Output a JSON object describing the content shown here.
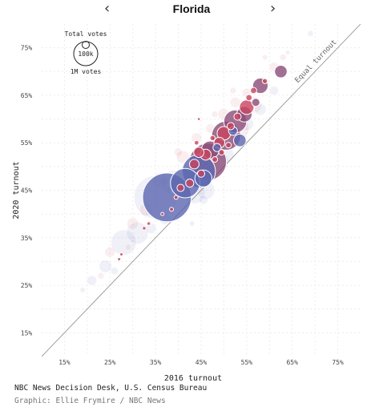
{
  "header": {
    "title": "Florida",
    "prev_icon": "chevron-left-icon",
    "next_icon": "chevron-right-icon",
    "prev_glyph": "‹",
    "next_glyph": "›"
  },
  "chart_data": {
    "type": "scatter",
    "xlabel": "2016 turnout",
    "ylabel": "2020 turnout",
    "xlim": [
      10,
      80
    ],
    "ylim": [
      10,
      80
    ],
    "x_ticks": [
      "15%",
      "25%",
      "35%",
      "45%",
      "55%",
      "65%",
      "75%"
    ],
    "y_ticks": [
      "15%",
      "25%",
      "35%",
      "45%",
      "55%",
      "65%",
      "75%"
    ],
    "reference_line_label": "Equal turnout",
    "size_legend": {
      "title": "Total votes",
      "small_label": "100k",
      "large_label": "1M votes"
    },
    "grid": true,
    "colors": {
      "dem": "#5b67b0",
      "rep": "#c8445e",
      "mixed": "#8b4c78",
      "reference": "#888888"
    },
    "points": [
      {
        "x": 37.5,
        "y": 43.5,
        "votes": 900000,
        "party": "dem"
      },
      {
        "x": 41.5,
        "y": 46.5,
        "votes": 330000,
        "party": "dem"
      },
      {
        "x": 44.5,
        "y": 49,
        "votes": 420000,
        "party": "dem"
      },
      {
        "x": 46.5,
        "y": 51,
        "votes": 520000,
        "party": "mixed"
      },
      {
        "x": 50.5,
        "y": 56.5,
        "votes": 320000,
        "party": "mixed"
      },
      {
        "x": 52.5,
        "y": 59.5,
        "votes": 200000,
        "party": "mixed"
      },
      {
        "x": 53.5,
        "y": 55.5,
        "votes": 60000,
        "party": "dem"
      },
      {
        "x": 47,
        "y": 53.5,
        "votes": 120000,
        "party": "mixed"
      },
      {
        "x": 45.5,
        "y": 47.5,
        "votes": 110000,
        "party": "dem"
      },
      {
        "x": 54.5,
        "y": 61,
        "votes": 90000,
        "party": "mixed"
      },
      {
        "x": 55,
        "y": 62.5,
        "votes": 80000,
        "party": "rep"
      },
      {
        "x": 58,
        "y": 67,
        "votes": 90000,
        "party": "mixed"
      },
      {
        "x": 62.5,
        "y": 70,
        "votes": 60000,
        "party": "mixed"
      },
      {
        "x": 50,
        "y": 57,
        "votes": 70000,
        "party": "rep"
      },
      {
        "x": 49,
        "y": 55,
        "votes": 45000,
        "party": "rep"
      },
      {
        "x": 46,
        "y": 52.5,
        "votes": 45000,
        "party": "rep"
      },
      {
        "x": 43.5,
        "y": 50.5,
        "votes": 35000,
        "party": "rep"
      },
      {
        "x": 42.5,
        "y": 46.5,
        "votes": 25000,
        "party": "rep"
      },
      {
        "x": 40.5,
        "y": 45.5,
        "votes": 20000,
        "party": "rep"
      },
      {
        "x": 45,
        "y": 48.5,
        "votes": 20000,
        "party": "rep"
      },
      {
        "x": 51.5,
        "y": 58.5,
        "votes": 20000,
        "party": "rep"
      },
      {
        "x": 53,
        "y": 60.5,
        "votes": 20000,
        "party": "rep"
      },
      {
        "x": 55.5,
        "y": 64.5,
        "votes": 15000,
        "party": "rep"
      },
      {
        "x": 56.5,
        "y": 66,
        "votes": 15000,
        "party": "rep"
      },
      {
        "x": 49.5,
        "y": 53,
        "votes": 12000,
        "party": "rep"
      },
      {
        "x": 48,
        "y": 51.5,
        "votes": 12000,
        "party": "rep"
      },
      {
        "x": 51,
        "y": 54.5,
        "votes": 12000,
        "party": "rep"
      },
      {
        "x": 47.5,
        "y": 56,
        "votes": 10000,
        "party": "rep"
      },
      {
        "x": 44,
        "y": 55,
        "votes": 8000,
        "party": "rep"
      },
      {
        "x": 39.5,
        "y": 43.5,
        "votes": 6000,
        "party": "rep"
      },
      {
        "x": 38.5,
        "y": 41,
        "votes": 6000,
        "party": "rep"
      },
      {
        "x": 33.5,
        "y": 38,
        "votes": 5000,
        "party": "rep"
      },
      {
        "x": 32.5,
        "y": 37,
        "votes": 5000,
        "party": "rep"
      },
      {
        "x": 27.5,
        "y": 31.5,
        "votes": 4000,
        "party": "rep"
      },
      {
        "x": 27,
        "y": 30.5,
        "votes": 4000,
        "party": "rep"
      },
      {
        "x": 36.5,
        "y": 40,
        "votes": 4000,
        "party": "rep"
      },
      {
        "x": 44.5,
        "y": 60,
        "votes": 2000,
        "party": "rep"
      },
      {
        "x": 52,
        "y": 57.5,
        "votes": 30000,
        "party": "dem"
      },
      {
        "x": 48.5,
        "y": 54,
        "votes": 25000,
        "party": "dem"
      },
      {
        "x": 57,
        "y": 63.5,
        "votes": 25000,
        "party": "mixed"
      },
      {
        "x": 59,
        "y": 68,
        "votes": 10000,
        "party": "rep"
      },
      {
        "x": 44.5,
        "y": 53,
        "votes": 40000,
        "party": "rep"
      }
    ],
    "faint_points": [
      {
        "x": 35,
        "y": 43.5,
        "votes": 700000,
        "party": "dem"
      },
      {
        "x": 28,
        "y": 34,
        "votes": 240000,
        "party": "dem"
      },
      {
        "x": 31,
        "y": 36,
        "votes": 180000,
        "party": "dem"
      },
      {
        "x": 24,
        "y": 29,
        "votes": 60000,
        "party": "dem"
      },
      {
        "x": 21,
        "y": 26,
        "votes": 35000,
        "party": "dem"
      },
      {
        "x": 39,
        "y": 46.5,
        "votes": 250000,
        "party": "dem"
      },
      {
        "x": 43.5,
        "y": 44.5,
        "votes": 180000,
        "party": "dem"
      },
      {
        "x": 46,
        "y": 45,
        "votes": 120000,
        "party": "dem"
      },
      {
        "x": 48.5,
        "y": 51,
        "votes": 200000,
        "party": "dem"
      },
      {
        "x": 53,
        "y": 58,
        "votes": 200000,
        "party": "rep"
      },
      {
        "x": 56.5,
        "y": 63,
        "votes": 100000,
        "party": "rep"
      },
      {
        "x": 58.5,
        "y": 67.5,
        "votes": 60000,
        "party": "rep"
      },
      {
        "x": 61,
        "y": 71,
        "votes": 30000,
        "party": "rep"
      },
      {
        "x": 63,
        "y": 73,
        "votes": 15000,
        "party": "rep"
      },
      {
        "x": 69,
        "y": 78,
        "votes": 12000,
        "party": "dem"
      },
      {
        "x": 25,
        "y": 32,
        "votes": 40000,
        "party": "rep"
      },
      {
        "x": 30,
        "y": 38,
        "votes": 50000,
        "party": "rep"
      },
      {
        "x": 33,
        "y": 41,
        "votes": 70000,
        "party": "rep"
      },
      {
        "x": 36,
        "y": 47,
        "votes": 90000,
        "party": "rep"
      },
      {
        "x": 41,
        "y": 52,
        "votes": 60000,
        "party": "rep"
      },
      {
        "x": 44,
        "y": 56,
        "votes": 40000,
        "party": "rep"
      },
      {
        "x": 47,
        "y": 58,
        "votes": 30000,
        "party": "rep"
      },
      {
        "x": 50,
        "y": 61,
        "votes": 50000,
        "party": "rep"
      },
      {
        "x": 52.5,
        "y": 63.5,
        "votes": 40000,
        "party": "rep"
      },
      {
        "x": 55,
        "y": 65.5,
        "votes": 30000,
        "party": "rep"
      },
      {
        "x": 42,
        "y": 49,
        "votes": 80000,
        "party": "rep"
      },
      {
        "x": 45,
        "y": 51.5,
        "votes": 90000,
        "party": "rep"
      },
      {
        "x": 50.5,
        "y": 52.5,
        "votes": 90000,
        "party": "dem"
      },
      {
        "x": 37,
        "y": 39,
        "votes": 50000,
        "party": "dem"
      },
      {
        "x": 34,
        "y": 37,
        "votes": 40000,
        "party": "dem"
      },
      {
        "x": 55,
        "y": 59,
        "votes": 70000,
        "party": "dem"
      },
      {
        "x": 58,
        "y": 62,
        "votes": 50000,
        "party": "dem"
      },
      {
        "x": 61,
        "y": 66,
        "votes": 30000,
        "party": "dem"
      },
      {
        "x": 48,
        "y": 61,
        "votes": 15000,
        "party": "rep"
      },
      {
        "x": 52,
        "y": 66,
        "votes": 15000,
        "party": "rep"
      },
      {
        "x": 40,
        "y": 53,
        "votes": 25000,
        "party": "rep"
      },
      {
        "x": 26,
        "y": 28,
        "votes": 20000,
        "party": "dem"
      },
      {
        "x": 19,
        "y": 24,
        "votes": 10000,
        "party": "dem"
      },
      {
        "x": 23,
        "y": 27,
        "votes": 15000,
        "party": "rep"
      },
      {
        "x": 29,
        "y": 33,
        "votes": 15000,
        "party": "rep"
      },
      {
        "x": 43,
        "y": 38,
        "votes": 10000,
        "party": "dem"
      },
      {
        "x": 45.5,
        "y": 43,
        "votes": 30000,
        "party": "dem"
      },
      {
        "x": 59,
        "y": 73,
        "votes": 10000,
        "party": "rep"
      },
      {
        "x": 64,
        "y": 74,
        "votes": 8000,
        "party": "rep"
      }
    ]
  },
  "footer": {
    "source": "NBC News Decision Desk, U.S. Census Bureau",
    "credit": "Graphic: Ellie Frymire / NBC News"
  }
}
